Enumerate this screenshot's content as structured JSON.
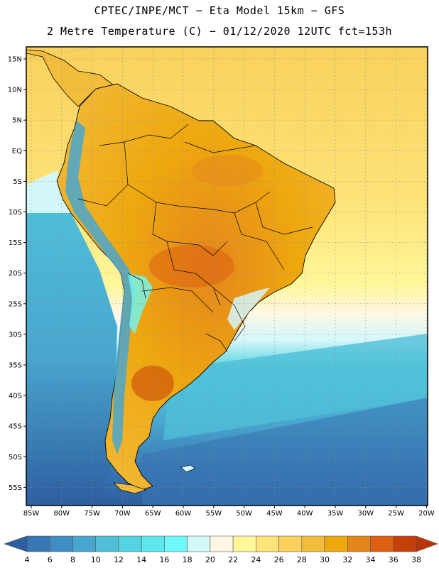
{
  "header": {
    "line1": "CPTEC/INPE/MCT −  Eta Model 15km − GFS",
    "line2": "2 Metre Temperature (C) − 01/12/2020 12UTC fct=153h"
  },
  "axes": {
    "lat_labels": [
      "15N",
      "10N",
      "5N",
      "EQ",
      "5S",
      "10S",
      "15S",
      "20S",
      "25S",
      "30S",
      "35S",
      "40S",
      "45S",
      "50S",
      "55S"
    ],
    "lon_labels": [
      "85W",
      "80W",
      "75W",
      "70W",
      "65W",
      "60W",
      "55W",
      "50W",
      "45W",
      "40W",
      "35W",
      "30W",
      "25W",
      "20W"
    ]
  },
  "colorbar": {
    "labels": [
      "4",
      "6",
      "8",
      "10",
      "12",
      "14",
      "16",
      "18",
      "20",
      "22",
      "24",
      "26",
      "28",
      "30",
      "32",
      "34",
      "36",
      "38"
    ],
    "colors": [
      "#2d5ea0",
      "#3877b3",
      "#3f8dc2",
      "#49a6cf",
      "#4fbfd8",
      "#55d3e0",
      "#5ee7ec",
      "#6ff8f8",
      "#d4f7fa",
      "#fff7e4",
      "#fff79a",
      "#fde47a",
      "#f9d15c",
      "#f2bc3c",
      "#eea80f",
      "#e4861c",
      "#dc6010",
      "#c5400a",
      "#b8350a"
    ]
  },
  "colors": {
    "ocean_deep": "#2d5ea0",
    "ocean_mid": "#4fbfd8",
    "ocean_shallow": "#6ff8f8",
    "land_warm": "#f2bc3c",
    "land_hot": "#e4861c",
    "border": "#000000"
  }
}
